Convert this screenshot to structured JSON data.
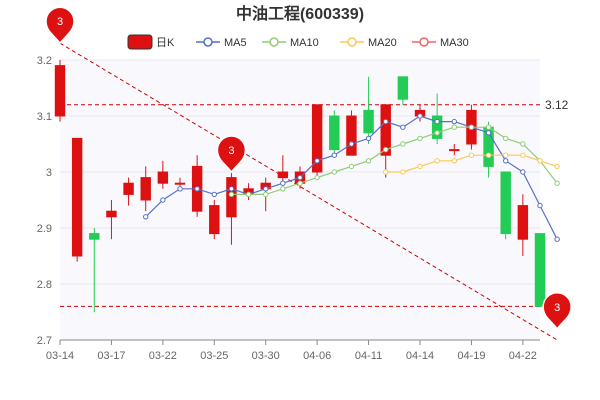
{
  "chart_data": {
    "type": "candlestick",
    "title": "中油工程(600339)",
    "ylim": [
      2.7,
      3.2
    ],
    "y_ticks": [
      "2.7",
      "2.8",
      "2.9",
      "3",
      "3.1",
      "3.2"
    ],
    "x_tick_labels": [
      "03-14",
      "03-17",
      "03-22",
      "03-25",
      "03-30",
      "04-06",
      "04-11",
      "04-14",
      "04-19",
      "04-22"
    ],
    "x_tick_indices": [
      0,
      3,
      6,
      9,
      12,
      15,
      18,
      21,
      24,
      27
    ],
    "grid": true,
    "legend_position": "top",
    "colors": {
      "up": "#dd1111",
      "down": "#22cc55",
      "MA5": "#5470c6",
      "MA10": "#91cc75",
      "MA20": "#fac858",
      "MA30": "#ee6666",
      "ref_line": "#cc0000",
      "pin": "#dd1111",
      "grid": "#e6e6f0"
    },
    "legend": [
      "日K",
      "MA5",
      "MA10",
      "MA20",
      "MA30"
    ],
    "candles": [
      {
        "o": 3.1,
        "c": 3.19,
        "h": 3.2,
        "l": 3.09
      },
      {
        "o": 2.85,
        "c": 3.06,
        "h": 3.06,
        "l": 2.84
      },
      {
        "o": 2.89,
        "c": 2.88,
        "h": 2.9,
        "l": 2.75
      },
      {
        "o": 2.92,
        "c": 2.93,
        "h": 2.95,
        "l": 2.88
      },
      {
        "o": 2.96,
        "c": 2.98,
        "h": 2.99,
        "l": 2.94
      },
      {
        "o": 2.95,
        "c": 2.99,
        "h": 3.01,
        "l": 2.93
      },
      {
        "o": 2.98,
        "c": 3.0,
        "h": 3.02,
        "l": 2.97
      },
      {
        "o": 2.98,
        "c": 2.98,
        "h": 2.99,
        "l": 2.97
      },
      {
        "o": 2.93,
        "c": 3.01,
        "h": 3.03,
        "l": 2.92
      },
      {
        "o": 2.89,
        "c": 2.94,
        "h": 2.95,
        "l": 2.88
      },
      {
        "o": 2.92,
        "c": 2.99,
        "h": 3.0,
        "l": 2.87
      },
      {
        "o": 2.96,
        "c": 2.97,
        "h": 2.98,
        "l": 2.95
      },
      {
        "o": 2.97,
        "c": 2.98,
        "h": 2.99,
        "l": 2.93
      },
      {
        "o": 2.99,
        "c": 3.0,
        "h": 3.03,
        "l": 2.98
      },
      {
        "o": 2.98,
        "c": 3.0,
        "h": 3.01,
        "l": 2.97
      },
      {
        "o": 3.0,
        "c": 3.12,
        "h": 3.12,
        "l": 2.99
      },
      {
        "o": 3.1,
        "c": 3.04,
        "h": 3.11,
        "l": 3.03
      },
      {
        "o": 3.03,
        "c": 3.1,
        "h": 3.11,
        "l": 3.03
      },
      {
        "o": 3.11,
        "c": 3.07,
        "h": 3.17,
        "l": 3.05
      },
      {
        "o": 3.03,
        "c": 3.12,
        "h": 3.12,
        "l": 2.99
      },
      {
        "o": 3.17,
        "c": 3.13,
        "h": 3.17,
        "l": 3.12
      },
      {
        "o": 3.1,
        "c": 3.11,
        "h": 3.12,
        "l": 3.09
      },
      {
        "o": 3.1,
        "c": 3.06,
        "h": 3.14,
        "l": 3.05
      },
      {
        "o": 3.04,
        "c": 3.04,
        "h": 3.05,
        "l": 3.03
      },
      {
        "o": 3.05,
        "c": 3.11,
        "h": 3.12,
        "l": 3.04
      },
      {
        "o": 3.08,
        "c": 3.01,
        "h": 3.09,
        "l": 2.99
      },
      {
        "o": 3.0,
        "c": 2.89,
        "h": 3.0,
        "l": 2.88
      },
      {
        "o": 2.88,
        "c": 2.94,
        "h": 2.96,
        "l": 2.85
      },
      {
        "o": 2.89,
        "c": 2.76,
        "h": 2.89,
        "l": 2.76
      }
    ],
    "ma": [
      {
        "name": "MA5",
        "points": [
          [
            5,
            2.92
          ],
          [
            6,
            2.95
          ],
          [
            7,
            2.97
          ],
          [
            8,
            2.97
          ],
          [
            9,
            2.96
          ],
          [
            10,
            2.97
          ],
          [
            11,
            2.96
          ],
          [
            12,
            2.97
          ],
          [
            13,
            2.98
          ],
          [
            14,
            2.99
          ],
          [
            15,
            3.02
          ],
          [
            16,
            3.03
          ],
          [
            17,
            3.05
          ],
          [
            18,
            3.06
          ],
          [
            19,
            3.09
          ],
          [
            20,
            3.08
          ],
          [
            21,
            3.1
          ],
          [
            22,
            3.09
          ],
          [
            23,
            3.09
          ],
          [
            24,
            3.08
          ],
          [
            25,
            3.07
          ],
          [
            26,
            3.02
          ],
          [
            27,
            3.0
          ],
          [
            28,
            2.94
          ],
          [
            29,
            2.88
          ]
        ]
      },
      {
        "name": "MA10",
        "points": [
          [
            10,
            2.96
          ],
          [
            11,
            2.96
          ],
          [
            12,
            2.96
          ],
          [
            13,
            2.97
          ],
          [
            14,
            2.98
          ],
          [
            15,
            2.99
          ],
          [
            16,
            3.0
          ],
          [
            17,
            3.01
          ],
          [
            18,
            3.02
          ],
          [
            19,
            3.04
          ],
          [
            20,
            3.05
          ],
          [
            21,
            3.06
          ],
          [
            22,
            3.07
          ],
          [
            23,
            3.08
          ],
          [
            24,
            3.08
          ],
          [
            25,
            3.08
          ],
          [
            26,
            3.06
          ],
          [
            27,
            3.05
          ],
          [
            28,
            3.02
          ],
          [
            29,
            2.98
          ]
        ]
      },
      {
        "name": "MA20",
        "points": [
          [
            19,
            3.0
          ],
          [
            20,
            3.0
          ],
          [
            21,
            3.01
          ],
          [
            22,
            3.02
          ],
          [
            23,
            3.02
          ],
          [
            24,
            3.03
          ],
          [
            25,
            3.03
          ],
          [
            26,
            3.03
          ],
          [
            27,
            3.03
          ],
          [
            28,
            3.02
          ],
          [
            29,
            3.01
          ]
        ]
      }
    ],
    "ref_lines": [
      {
        "value": 3.12,
        "label": "3.12"
      },
      {
        "value": 2.76,
        "label": "2.76"
      }
    ],
    "trend_line": {
      "from": [
        0,
        3.23
      ],
      "to": [
        29,
        2.7
      ]
    },
    "pins": [
      {
        "index": 0,
        "value": 3.23,
        "label": "3"
      },
      {
        "index": 10,
        "value": 3.0,
        "label": "3"
      },
      {
        "index": 29,
        "value": 2.72,
        "label": "3"
      }
    ]
  }
}
